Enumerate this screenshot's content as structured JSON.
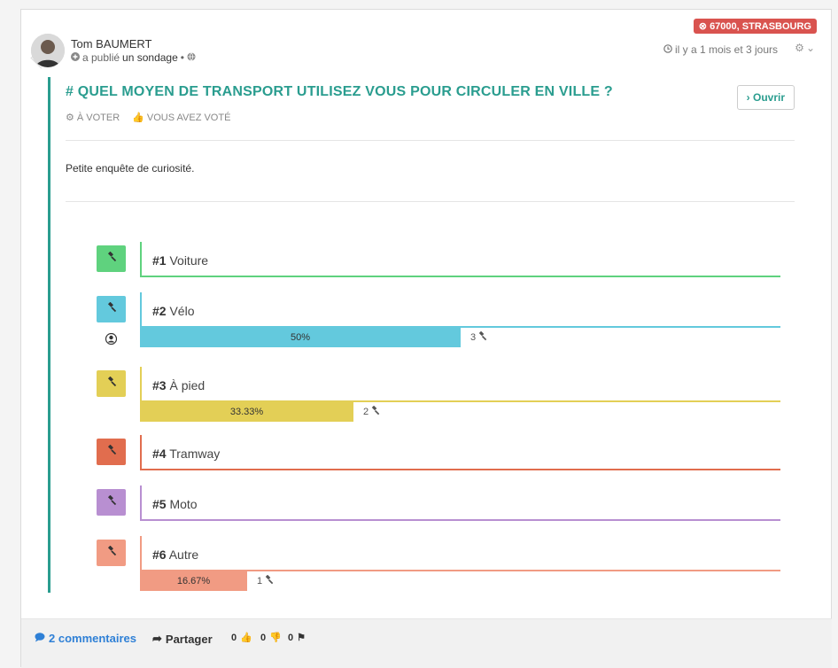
{
  "post": {
    "location_badge": "67000, STRASBOURG",
    "author": "Tom BAUMERT",
    "meta_prefix": "a publié",
    "meta_link": "un sondage",
    "meta_sep": "•",
    "time": "il y a 1 mois et 3 jours"
  },
  "poll": {
    "title": "# QUEL MOYEN DE TRANSPORT UTILISEZ VOUS POUR CIRCULER EN VILLE ?",
    "open_label": "Ouvrir",
    "tag_vote": "À VOTER",
    "tag_voted": "VOUS AVEZ VOTÉ",
    "description": "Petite enquête de curiosité.",
    "options": [
      {
        "num": "#1",
        "label": "Voiture",
        "color": "#5fd27e",
        "percent": null,
        "count": null
      },
      {
        "num": "#2",
        "label": "Vélo",
        "color": "#63c9dd",
        "percent": "50%",
        "fraction": 0.5,
        "count": "3",
        "user_voted": true
      },
      {
        "num": "#3",
        "label": "À pied",
        "color": "#e3cf56",
        "percent": "33.33%",
        "fraction": 0.3333,
        "count": "2"
      },
      {
        "num": "#4",
        "label": "Tramway",
        "color": "#e16d4e",
        "percent": null,
        "count": null
      },
      {
        "num": "#5",
        "label": "Moto",
        "color": "#b88fd1",
        "percent": null,
        "count": null
      },
      {
        "num": "#6",
        "label": "Autre",
        "color": "#f19b83",
        "percent": "16.67%",
        "fraction": 0.1667,
        "count": "1"
      }
    ]
  },
  "footer": {
    "comments": "2 commentaires",
    "share": "Partager",
    "likes": "0",
    "dislikes": "0",
    "flags": "0"
  }
}
